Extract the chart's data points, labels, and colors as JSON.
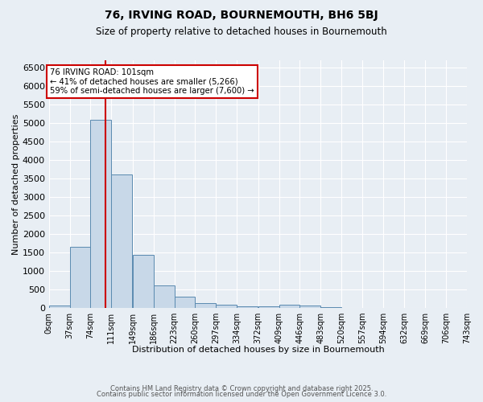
{
  "title": "76, IRVING ROAD, BOURNEMOUTH, BH6 5BJ",
  "subtitle": "Size of property relative to detached houses in Bournemouth",
  "xlabel": "Distribution of detached houses by size in Bournemouth",
  "ylabel": "Number of detached properties",
  "bar_color": "#c8d8e8",
  "bar_edge_color": "#5a8ab0",
  "background_color": "#e8eef4",
  "grid_color": "#ffffff",
  "bin_labels": [
    "0sqm",
    "37sqm",
    "74sqm",
    "111sqm",
    "149sqm",
    "186sqm",
    "223sqm",
    "260sqm",
    "297sqm",
    "334sqm",
    "372sqm",
    "409sqm",
    "446sqm",
    "483sqm",
    "520sqm",
    "557sqm",
    "594sqm",
    "632sqm",
    "669sqm",
    "706sqm",
    "743sqm"
  ],
  "bin_edges": [
    0,
    37,
    74,
    111,
    149,
    186,
    223,
    260,
    297,
    334,
    372,
    409,
    446,
    483,
    520,
    557,
    594,
    632,
    669,
    706,
    743
  ],
  "bar_heights": [
    60,
    1650,
    5100,
    3600,
    1430,
    600,
    300,
    125,
    75,
    50,
    30,
    75,
    60,
    10,
    5,
    3,
    2,
    1,
    1,
    1,
    0
  ],
  "property_size": 101,
  "red_line_color": "#cc0000",
  "annotation_text": "76 IRVING ROAD: 101sqm\n← 41% of detached houses are smaller (5,266)\n59% of semi-detached houses are larger (7,600) →",
  "annotation_box_color": "#ffffff",
  "annotation_box_edge_color": "#cc0000",
  "ylim": [
    0,
    6700
  ],
  "yticks": [
    0,
    500,
    1000,
    1500,
    2000,
    2500,
    3000,
    3500,
    4000,
    4500,
    5000,
    5500,
    6000,
    6500
  ],
  "footer_line1": "Contains HM Land Registry data © Crown copyright and database right 2025.",
  "footer_line2": "Contains public sector information licensed under the Open Government Licence 3.0."
}
